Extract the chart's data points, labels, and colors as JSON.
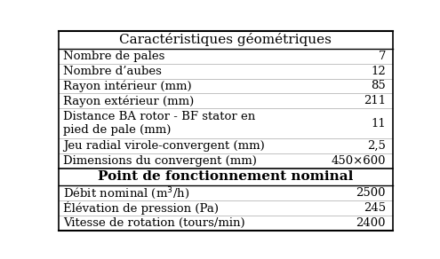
{
  "section1_header": "Caractéristiques géométriques",
  "section2_header": "Point de fonctionnement nominal",
  "rows_section1": [
    [
      "Nombre de pales",
      "7"
    ],
    [
      "Nombre d’aubes",
      "12"
    ],
    [
      "Rayon intérieur (mm)",
      "85"
    ],
    [
      "Rayon extérieur (mm)",
      "211"
    ],
    [
      "Distance BA rotor - BF stator en\npied de pale (mm)",
      "11"
    ],
    [
      "Jeu radial virole-convergent (mm)",
      "2,5"
    ],
    [
      "Dimensions du convergent (mm)",
      "450×600"
    ]
  ],
  "rows_section2": [
    [
      "Débit nominal (m$^3$/h)",
      "2500"
    ],
    [
      "Élévation de pression (Pa)",
      "245"
    ],
    [
      "Vitesse de rotation (tours/min)",
      "2400"
    ]
  ],
  "font_size": 9.5,
  "header_font_size": 11
}
